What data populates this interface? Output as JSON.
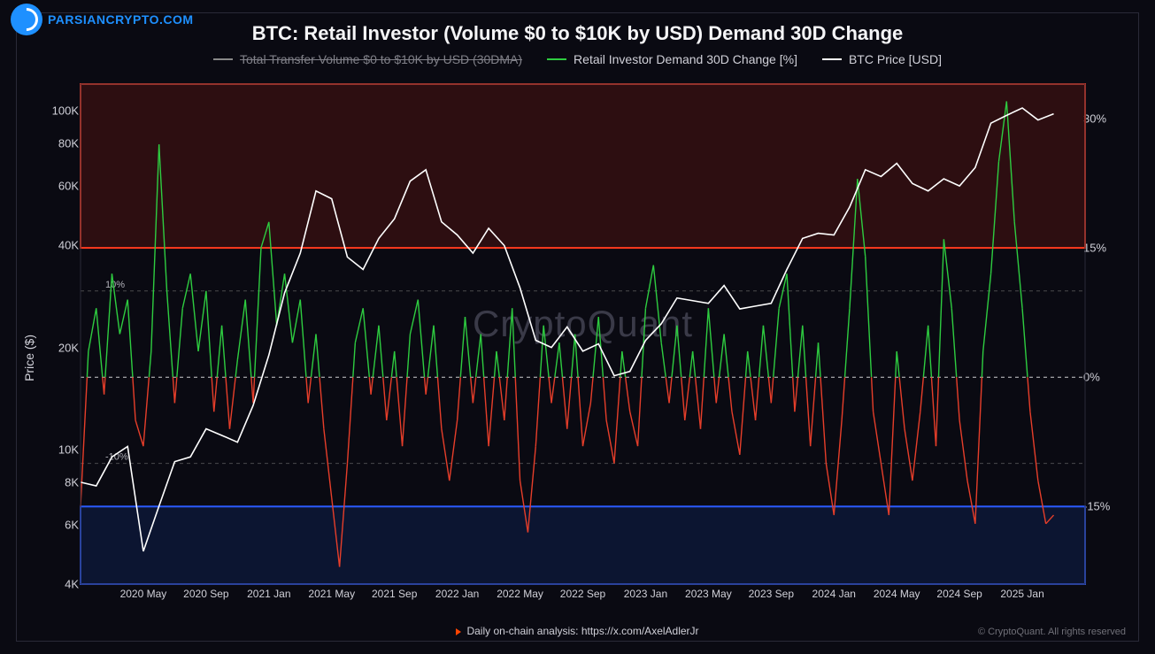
{
  "watermark": {
    "site": "PARSIANCRYPTO.COM",
    "color": "#1e90ff"
  },
  "chart": {
    "type": "line-dual-axis",
    "title": "BTC: Retail Investor (Volume $0 to $10K by USD) Demand 30D Change",
    "title_fontsize": 22,
    "background_color": "#0a0a12",
    "frame_border_color": "#2a2a38",
    "cq_watermark_text": "CryptoQuant",
    "cq_watermark_color": "#3a3a48",
    "legend": {
      "items": [
        {
          "label": "Total Transfer Volume $0 to $10K by USD (30DMA)",
          "color": "#888888",
          "disabled": true
        },
        {
          "label": "Retail Investor Demand 30D Change [%]",
          "color": "#2ecc40",
          "disabled": false
        },
        {
          "label": "BTC Price [USD]",
          "color": "#ffffff",
          "disabled": false
        }
      ]
    },
    "y_left": {
      "label": "Price ($)",
      "scale": "log",
      "ticks": [
        {
          "v": 4000,
          "label": "4K"
        },
        {
          "v": 6000,
          "label": "6K"
        },
        {
          "v": 8000,
          "label": "8K"
        },
        {
          "v": 10000,
          "label": "10K"
        },
        {
          "v": 20000,
          "label": "20K"
        },
        {
          "v": 40000,
          "label": "40K"
        },
        {
          "v": 60000,
          "label": "60K"
        },
        {
          "v": 80000,
          "label": "80K"
        },
        {
          "v": 100000,
          "label": "100K"
        }
      ],
      "min": 4000,
      "max": 120000
    },
    "y_right": {
      "label": "",
      "scale": "linear",
      "ticks": [
        {
          "v": -15,
          "label": "-15%"
        },
        {
          "v": 0,
          "label": "0%"
        },
        {
          "v": 15,
          "label": "15%"
        },
        {
          "v": 30,
          "label": "30%"
        }
      ],
      "min": -24,
      "max": 34
    },
    "x_axis": {
      "min": 0,
      "max": 64,
      "ticks": [
        {
          "v": 4,
          "label": "2020 May"
        },
        {
          "v": 8,
          "label": "2020 Sep"
        },
        {
          "v": 12,
          "label": "2021 Jan"
        },
        {
          "v": 16,
          "label": "2021 May"
        },
        {
          "v": 20,
          "label": "2021 Sep"
        },
        {
          "v": 24,
          "label": "2022 Jan"
        },
        {
          "v": 28,
          "label": "2022 May"
        },
        {
          "v": 32,
          "label": "2022 Sep"
        },
        {
          "v": 36,
          "label": "2023 Jan"
        },
        {
          "v": 40,
          "label": "2023 May"
        },
        {
          "v": 44,
          "label": "2023 Sep"
        },
        {
          "v": 48,
          "label": "2024 Jan"
        },
        {
          "v": 52,
          "label": "2024 May"
        },
        {
          "v": 56,
          "label": "2024 Sep"
        },
        {
          "v": 60,
          "label": "2025 Jan"
        }
      ]
    },
    "hlines": [
      {
        "axis": "right",
        "v": 0,
        "style": "dashed",
        "color": "#ffffff",
        "opacity": 0.8,
        "label": ""
      },
      {
        "axis": "right",
        "v": 10,
        "style": "dashed",
        "color": "#888888",
        "opacity": 0.5,
        "label": "10%"
      },
      {
        "axis": "right",
        "v": -10,
        "style": "dashed",
        "color": "#888888",
        "opacity": 0.5,
        "label": "-10%"
      }
    ],
    "zones": [
      {
        "axis": "right",
        "from": 15,
        "to": 34,
        "fill": "#4a1210",
        "border": "#ff3b1f",
        "border_width": 2,
        "opacity": 0.55
      },
      {
        "axis": "right",
        "from": -24,
        "to": -15,
        "fill": "#0f1f4a",
        "border": "#2b5bff",
        "border_width": 2,
        "opacity": 0.55
      }
    ],
    "series": [
      {
        "name": "btc_price",
        "axis": "left",
        "color": "#ffffff",
        "width": 1.6,
        "points": [
          [
            0,
            8000
          ],
          [
            1,
            7800
          ],
          [
            2,
            9500
          ],
          [
            3,
            10200
          ],
          [
            4,
            5000
          ],
          [
            5,
            6800
          ],
          [
            6,
            9200
          ],
          [
            7,
            9500
          ],
          [
            8,
            11500
          ],
          [
            9,
            11000
          ],
          [
            10,
            10500
          ],
          [
            11,
            13500
          ],
          [
            12,
            19000
          ],
          [
            13,
            29000
          ],
          [
            14,
            38000
          ],
          [
            15,
            58000
          ],
          [
            16,
            55000
          ],
          [
            17,
            37000
          ],
          [
            18,
            34000
          ],
          [
            19,
            42000
          ],
          [
            20,
            48000
          ],
          [
            21,
            62000
          ],
          [
            22,
            67000
          ],
          [
            23,
            47000
          ],
          [
            24,
            43000
          ],
          [
            25,
            38000
          ],
          [
            26,
            45000
          ],
          [
            27,
            40000
          ],
          [
            28,
            30000
          ],
          [
            29,
            21000
          ],
          [
            30,
            20000
          ],
          [
            31,
            23000
          ],
          [
            32,
            19500
          ],
          [
            33,
            20500
          ],
          [
            34,
            16500
          ],
          [
            35,
            17000
          ],
          [
            36,
            21000
          ],
          [
            37,
            23500
          ],
          [
            38,
            28000
          ],
          [
            39,
            27500
          ],
          [
            40,
            27000
          ],
          [
            41,
            30500
          ],
          [
            42,
            26000
          ],
          [
            43,
            26500
          ],
          [
            44,
            27000
          ],
          [
            45,
            34000
          ],
          [
            46,
            42000
          ],
          [
            47,
            43500
          ],
          [
            48,
            43000
          ],
          [
            49,
            52000
          ],
          [
            50,
            67000
          ],
          [
            51,
            64000
          ],
          [
            52,
            70000
          ],
          [
            53,
            61000
          ],
          [
            54,
            58000
          ],
          [
            55,
            63000
          ],
          [
            56,
            60000
          ],
          [
            57,
            68000
          ],
          [
            58,
            92000
          ],
          [
            59,
            97000
          ],
          [
            60,
            102000
          ],
          [
            61,
            94000
          ],
          [
            62,
            98000
          ]
        ]
      },
      {
        "name": "retail_demand_pos",
        "axis": "right",
        "color": "#2ecc40",
        "width": 1.4,
        "clip_above": 0,
        "points": [
          [
            0,
            -15
          ],
          [
            0.5,
            3
          ],
          [
            1,
            8
          ],
          [
            1.5,
            -2
          ],
          [
            2,
            12
          ],
          [
            2.5,
            5
          ],
          [
            3,
            9
          ],
          [
            3.5,
            -5
          ],
          [
            4,
            -8
          ],
          [
            4.5,
            3
          ],
          [
            5,
            27
          ],
          [
            5.5,
            10
          ],
          [
            6,
            -3
          ],
          [
            6.5,
            8
          ],
          [
            7,
            12
          ],
          [
            7.5,
            3
          ],
          [
            8,
            10
          ],
          [
            8.5,
            -4
          ],
          [
            9,
            6
          ],
          [
            9.5,
            -6
          ],
          [
            10,
            2
          ],
          [
            10.5,
            9
          ],
          [
            11,
            -3
          ],
          [
            11.5,
            15
          ],
          [
            12,
            18
          ],
          [
            12.5,
            6
          ],
          [
            13,
            12
          ],
          [
            13.5,
            4
          ],
          [
            14,
            9
          ],
          [
            14.5,
            -3
          ],
          [
            15,
            5
          ],
          [
            15.5,
            -6
          ],
          [
            16,
            -14
          ],
          [
            16.5,
            -22
          ],
          [
            17,
            -10
          ],
          [
            17.5,
            4
          ],
          [
            18,
            8
          ],
          [
            18.5,
            -2
          ],
          [
            19,
            6
          ],
          [
            19.5,
            -5
          ],
          [
            20,
            3
          ],
          [
            20.5,
            -8
          ],
          [
            21,
            5
          ],
          [
            21.5,
            9
          ],
          [
            22,
            -2
          ],
          [
            22.5,
            6
          ],
          [
            23,
            -6
          ],
          [
            23.5,
            -12
          ],
          [
            24,
            -5
          ],
          [
            24.5,
            7
          ],
          [
            25,
            -3
          ],
          [
            25.5,
            5
          ],
          [
            26,
            -8
          ],
          [
            26.5,
            3
          ],
          [
            27,
            -5
          ],
          [
            27.5,
            8
          ],
          [
            28,
            -12
          ],
          [
            28.5,
            -18
          ],
          [
            29,
            -8
          ],
          [
            29.5,
            6
          ],
          [
            30,
            -3
          ],
          [
            30.5,
            4
          ],
          [
            31,
            -6
          ],
          [
            31.5,
            5
          ],
          [
            32,
            -8
          ],
          [
            32.5,
            -3
          ],
          [
            33,
            7
          ],
          [
            33.5,
            -5
          ],
          [
            34,
            -10
          ],
          [
            34.5,
            3
          ],
          [
            35,
            -4
          ],
          [
            35.5,
            -8
          ],
          [
            36,
            8
          ],
          [
            36.5,
            13
          ],
          [
            37,
            4
          ],
          [
            37.5,
            -3
          ],
          [
            38,
            6
          ],
          [
            38.5,
            -5
          ],
          [
            39,
            3
          ],
          [
            39.5,
            -6
          ],
          [
            40,
            8
          ],
          [
            40.5,
            -3
          ],
          [
            41,
            5
          ],
          [
            41.5,
            -4
          ],
          [
            42,
            -9
          ],
          [
            42.5,
            3
          ],
          [
            43,
            -5
          ],
          [
            43.5,
            6
          ],
          [
            44,
            -3
          ],
          [
            44.5,
            8
          ],
          [
            45,
            12
          ],
          [
            45.5,
            -4
          ],
          [
            46,
            6
          ],
          [
            46.5,
            -8
          ],
          [
            47,
            4
          ],
          [
            47.5,
            -10
          ],
          [
            48,
            -16
          ],
          [
            48.5,
            -5
          ],
          [
            49,
            8
          ],
          [
            49.5,
            23
          ],
          [
            50,
            14
          ],
          [
            50.5,
            -4
          ],
          [
            51,
            -10
          ],
          [
            51.5,
            -16
          ],
          [
            52,
            3
          ],
          [
            52.5,
            -6
          ],
          [
            53,
            -12
          ],
          [
            53.5,
            -4
          ],
          [
            54,
            6
          ],
          [
            54.5,
            -8
          ],
          [
            55,
            16
          ],
          [
            55.5,
            8
          ],
          [
            56,
            -5
          ],
          [
            56.5,
            -12
          ],
          [
            57,
            -17
          ],
          [
            57.5,
            3
          ],
          [
            58,
            12
          ],
          [
            58.5,
            25
          ],
          [
            59,
            32
          ],
          [
            59.5,
            18
          ],
          [
            60,
            8
          ],
          [
            60.5,
            -4
          ],
          [
            61,
            -12
          ],
          [
            61.5,
            -17
          ],
          [
            62,
            -16
          ]
        ]
      }
    ],
    "demand_colors": {
      "pos": "#2ecc40",
      "neg": "#e63e2a"
    }
  },
  "footer": {
    "text": "Daily on-chain analysis: https://x.com/AxelAdlerJr",
    "marker_color": "#ff4400"
  },
  "copyright": "© CryptoQuant. All rights reserved"
}
